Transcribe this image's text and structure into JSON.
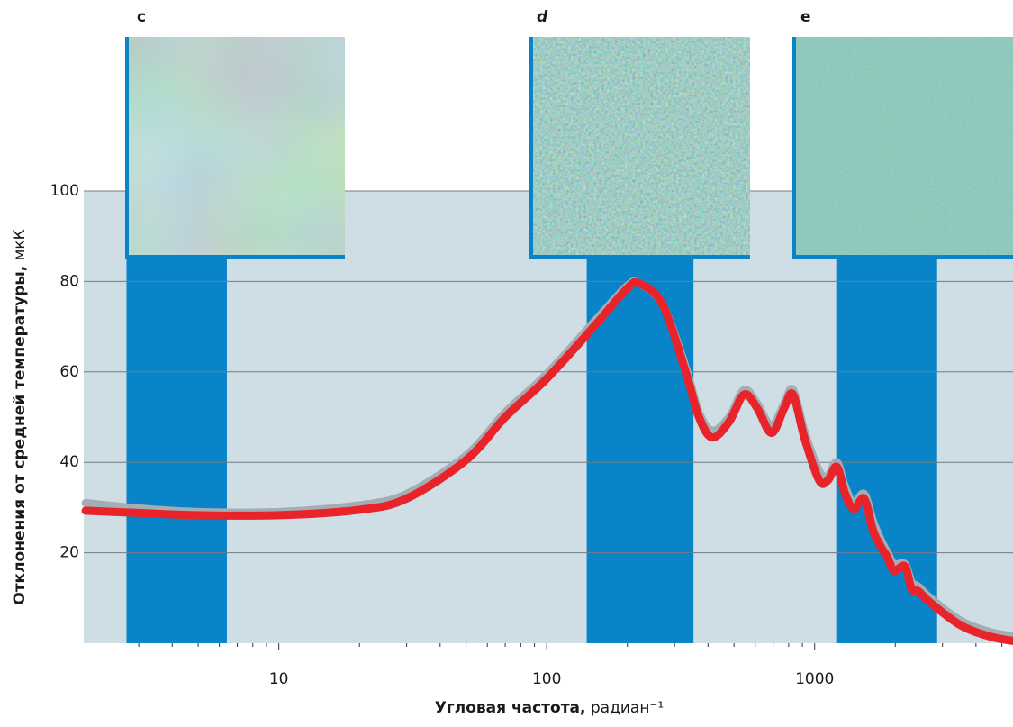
{
  "chart_data": {
    "type": "line",
    "y_label_bold": "Отклонения от средней температуры,",
    "y_label_unit": "мкК",
    "x_label_bold": "Угловая частота,",
    "x_label_unit": "радиан⁻¹",
    "x": [
      1.9,
      3,
      5,
      10,
      20,
      30,
      50,
      70,
      100,
      150,
      200,
      222,
      270,
      330,
      370,
      415,
      480,
      545,
      610,
      690,
      770,
      830,
      920,
      1040,
      1120,
      1210,
      1300,
      1400,
      1530,
      1650,
      1760,
      1870,
      1980,
      2170,
      2300,
      2440,
      2700,
      3500,
      4500,
      5500
    ],
    "series": [
      {
        "color": "#a3adb3",
        "values": [
          31,
          29.8,
          29,
          29,
          30.5,
          33,
          41.5,
          51,
          59.5,
          71,
          79,
          79.5,
          75,
          61,
          51,
          47,
          50,
          56,
          53,
          48,
          53,
          56,
          46.5,
          38,
          37,
          40,
          34.5,
          31,
          33,
          27,
          23,
          20,
          17.5,
          17.5,
          13.5,
          12.5,
          10,
          5,
          2.5,
          1.5
        ]
      },
      {
        "color": "#e8232a",
        "values": [
          29.3,
          28.8,
          28.3,
          28.3,
          29.5,
          32,
          40.5,
          50,
          58.5,
          70,
          78.5,
          79.5,
          75,
          60,
          50,
          45.5,
          49,
          55,
          52,
          46.5,
          52,
          55,
          45,
          36,
          36,
          39,
          33,
          29.7,
          32,
          25,
          21.5,
          19,
          16,
          17,
          12,
          11.5,
          9,
          4,
          1.5,
          0.5
        ]
      }
    ],
    "bands": [
      [
        2.7,
        6.4
      ],
      [
        141,
        353
      ],
      [
        1204,
        2865
      ]
    ],
    "band_color": "#0a84c9",
    "panels": [
      "c",
      "d",
      "e"
    ],
    "xlim": [
      1.87,
      5500
    ],
    "xticks": [
      10,
      100,
      1000
    ],
    "xminor_ticks": [
      3,
      4,
      5,
      6,
      7,
      8,
      9,
      20,
      30,
      40,
      50,
      60,
      70,
      80,
      90,
      200,
      300,
      400,
      500,
      600,
      700,
      800,
      900,
      2000,
      3000,
      4000,
      5000
    ],
    "xscale": "log",
    "ylim": [
      0,
      100
    ],
    "yticks": [
      20,
      40,
      60,
      80,
      100
    ],
    "grid": true
  }
}
